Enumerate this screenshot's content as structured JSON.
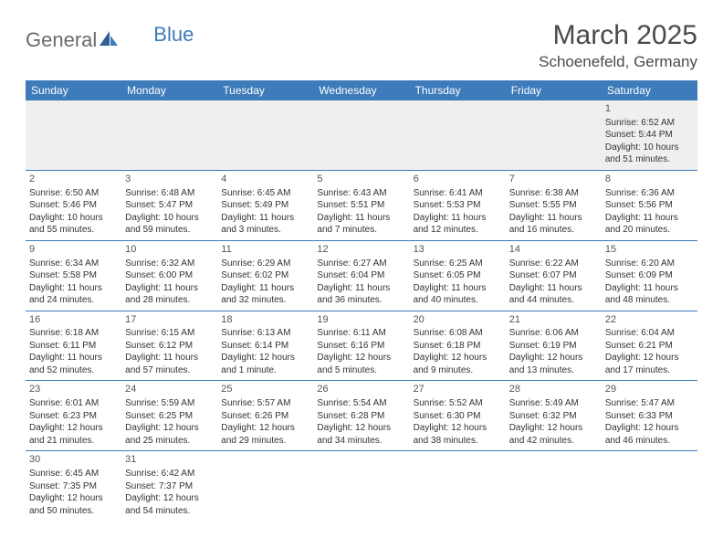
{
  "brand": {
    "text1": "General",
    "text2": "Blue"
  },
  "title": "March 2025",
  "location": "Schoenefeld, Germany",
  "weekdays": [
    "Sunday",
    "Monday",
    "Tuesday",
    "Wednesday",
    "Thursday",
    "Friday",
    "Saturday"
  ],
  "colors": {
    "header_bg": "#3d7bba",
    "header_text": "#ffffff",
    "body_text": "#333333",
    "firstweek_bg": "#efefef"
  },
  "weeks": [
    [
      null,
      null,
      null,
      null,
      null,
      null,
      {
        "day": "1",
        "sunrise": "Sunrise: 6:52 AM",
        "sunset": "Sunset: 5:44 PM",
        "daylight": "Daylight: 10 hours and 51 minutes."
      }
    ],
    [
      {
        "day": "2",
        "sunrise": "Sunrise: 6:50 AM",
        "sunset": "Sunset: 5:46 PM",
        "daylight": "Daylight: 10 hours and 55 minutes."
      },
      {
        "day": "3",
        "sunrise": "Sunrise: 6:48 AM",
        "sunset": "Sunset: 5:47 PM",
        "daylight": "Daylight: 10 hours and 59 minutes."
      },
      {
        "day": "4",
        "sunrise": "Sunrise: 6:45 AM",
        "sunset": "Sunset: 5:49 PM",
        "daylight": "Daylight: 11 hours and 3 minutes."
      },
      {
        "day": "5",
        "sunrise": "Sunrise: 6:43 AM",
        "sunset": "Sunset: 5:51 PM",
        "daylight": "Daylight: 11 hours and 7 minutes."
      },
      {
        "day": "6",
        "sunrise": "Sunrise: 6:41 AM",
        "sunset": "Sunset: 5:53 PM",
        "daylight": "Daylight: 11 hours and 12 minutes."
      },
      {
        "day": "7",
        "sunrise": "Sunrise: 6:38 AM",
        "sunset": "Sunset: 5:55 PM",
        "daylight": "Daylight: 11 hours and 16 minutes."
      },
      {
        "day": "8",
        "sunrise": "Sunrise: 6:36 AM",
        "sunset": "Sunset: 5:56 PM",
        "daylight": "Daylight: 11 hours and 20 minutes."
      }
    ],
    [
      {
        "day": "9",
        "sunrise": "Sunrise: 6:34 AM",
        "sunset": "Sunset: 5:58 PM",
        "daylight": "Daylight: 11 hours and 24 minutes."
      },
      {
        "day": "10",
        "sunrise": "Sunrise: 6:32 AM",
        "sunset": "Sunset: 6:00 PM",
        "daylight": "Daylight: 11 hours and 28 minutes."
      },
      {
        "day": "11",
        "sunrise": "Sunrise: 6:29 AM",
        "sunset": "Sunset: 6:02 PM",
        "daylight": "Daylight: 11 hours and 32 minutes."
      },
      {
        "day": "12",
        "sunrise": "Sunrise: 6:27 AM",
        "sunset": "Sunset: 6:04 PM",
        "daylight": "Daylight: 11 hours and 36 minutes."
      },
      {
        "day": "13",
        "sunrise": "Sunrise: 6:25 AM",
        "sunset": "Sunset: 6:05 PM",
        "daylight": "Daylight: 11 hours and 40 minutes."
      },
      {
        "day": "14",
        "sunrise": "Sunrise: 6:22 AM",
        "sunset": "Sunset: 6:07 PM",
        "daylight": "Daylight: 11 hours and 44 minutes."
      },
      {
        "day": "15",
        "sunrise": "Sunrise: 6:20 AM",
        "sunset": "Sunset: 6:09 PM",
        "daylight": "Daylight: 11 hours and 48 minutes."
      }
    ],
    [
      {
        "day": "16",
        "sunrise": "Sunrise: 6:18 AM",
        "sunset": "Sunset: 6:11 PM",
        "daylight": "Daylight: 11 hours and 52 minutes."
      },
      {
        "day": "17",
        "sunrise": "Sunrise: 6:15 AM",
        "sunset": "Sunset: 6:12 PM",
        "daylight": "Daylight: 11 hours and 57 minutes."
      },
      {
        "day": "18",
        "sunrise": "Sunrise: 6:13 AM",
        "sunset": "Sunset: 6:14 PM",
        "daylight": "Daylight: 12 hours and 1 minute."
      },
      {
        "day": "19",
        "sunrise": "Sunrise: 6:11 AM",
        "sunset": "Sunset: 6:16 PM",
        "daylight": "Daylight: 12 hours and 5 minutes."
      },
      {
        "day": "20",
        "sunrise": "Sunrise: 6:08 AM",
        "sunset": "Sunset: 6:18 PM",
        "daylight": "Daylight: 12 hours and 9 minutes."
      },
      {
        "day": "21",
        "sunrise": "Sunrise: 6:06 AM",
        "sunset": "Sunset: 6:19 PM",
        "daylight": "Daylight: 12 hours and 13 minutes."
      },
      {
        "day": "22",
        "sunrise": "Sunrise: 6:04 AM",
        "sunset": "Sunset: 6:21 PM",
        "daylight": "Daylight: 12 hours and 17 minutes."
      }
    ],
    [
      {
        "day": "23",
        "sunrise": "Sunrise: 6:01 AM",
        "sunset": "Sunset: 6:23 PM",
        "daylight": "Daylight: 12 hours and 21 minutes."
      },
      {
        "day": "24",
        "sunrise": "Sunrise: 5:59 AM",
        "sunset": "Sunset: 6:25 PM",
        "daylight": "Daylight: 12 hours and 25 minutes."
      },
      {
        "day": "25",
        "sunrise": "Sunrise: 5:57 AM",
        "sunset": "Sunset: 6:26 PM",
        "daylight": "Daylight: 12 hours and 29 minutes."
      },
      {
        "day": "26",
        "sunrise": "Sunrise: 5:54 AM",
        "sunset": "Sunset: 6:28 PM",
        "daylight": "Daylight: 12 hours and 34 minutes."
      },
      {
        "day": "27",
        "sunrise": "Sunrise: 5:52 AM",
        "sunset": "Sunset: 6:30 PM",
        "daylight": "Daylight: 12 hours and 38 minutes."
      },
      {
        "day": "28",
        "sunrise": "Sunrise: 5:49 AM",
        "sunset": "Sunset: 6:32 PM",
        "daylight": "Daylight: 12 hours and 42 minutes."
      },
      {
        "day": "29",
        "sunrise": "Sunrise: 5:47 AM",
        "sunset": "Sunset: 6:33 PM",
        "daylight": "Daylight: 12 hours and 46 minutes."
      }
    ],
    [
      {
        "day": "30",
        "sunrise": "Sunrise: 6:45 AM",
        "sunset": "Sunset: 7:35 PM",
        "daylight": "Daylight: 12 hours and 50 minutes."
      },
      {
        "day": "31",
        "sunrise": "Sunrise: 6:42 AM",
        "sunset": "Sunset: 7:37 PM",
        "daylight": "Daylight: 12 hours and 54 minutes."
      },
      null,
      null,
      null,
      null,
      null
    ]
  ]
}
